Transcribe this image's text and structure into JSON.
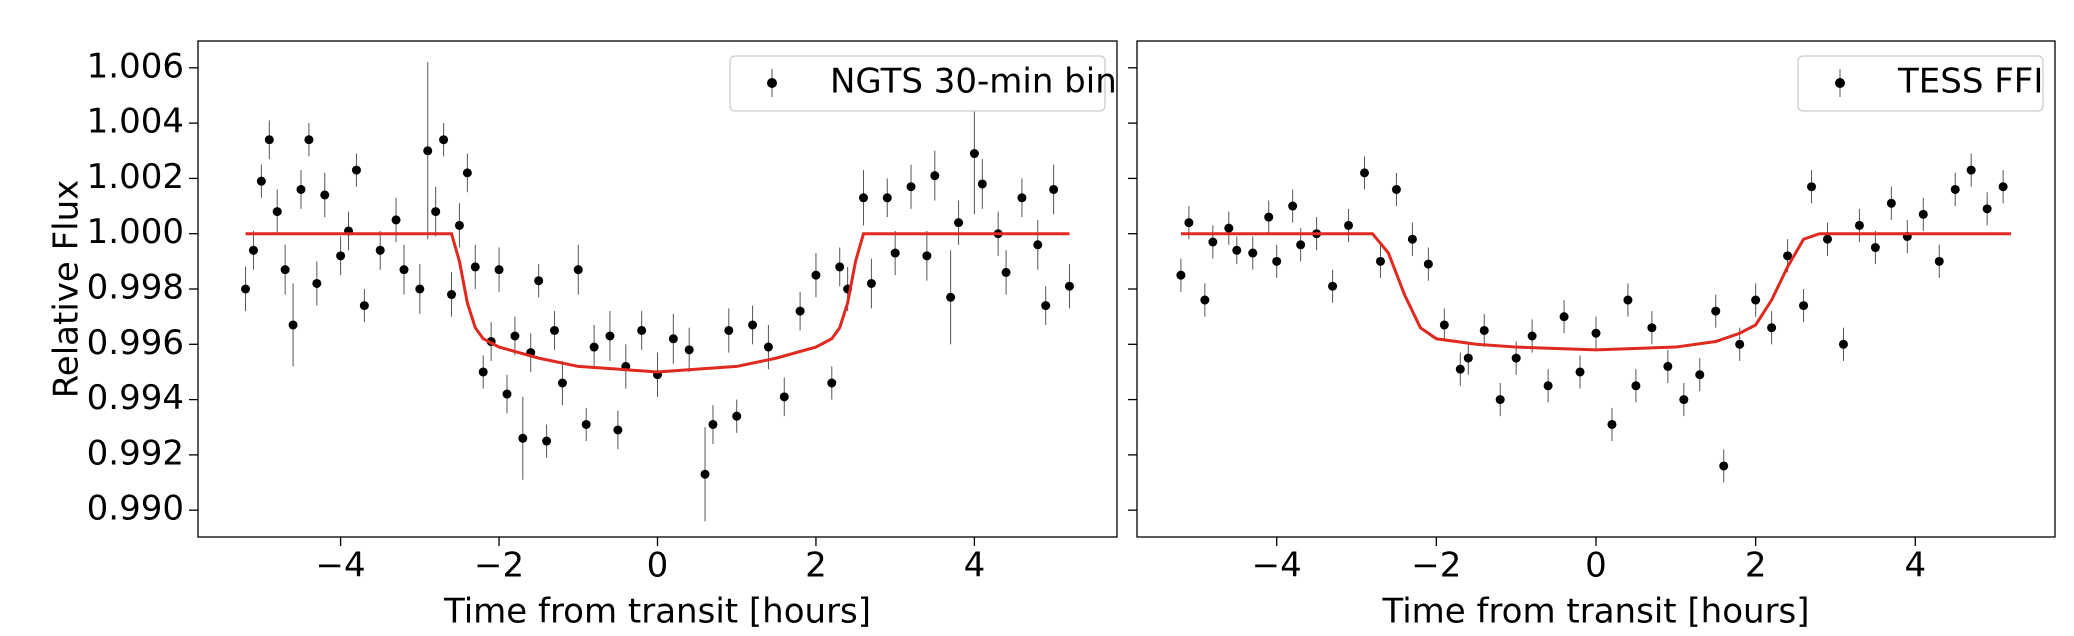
{
  "chart_data": [
    {
      "type": "scatter",
      "xlabel": "Time from transit [hours]",
      "ylabel": "Relative Flux",
      "xlim": [
        -5.8,
        5.8
      ],
      "ylim": [
        0.98903,
        1.00697
      ],
      "xticks": [
        {
          "value": -4,
          "label": "−4"
        },
        {
          "value": -2,
          "label": "−2"
        },
        0,
        2,
        4
      ],
      "yticks": [
        {
          "value": 0.99,
          "label": "0.990"
        },
        0.992,
        0.994,
        0.996,
        0.998,
        {
          "value": 1,
          "label": "1.000"
        },
        1.002,
        1.004,
        1.006
      ],
      "show_ytick_labels": true,
      "legend": "upper right",
      "series": [
        {
          "name": "NGTS 30-min bin",
          "type": "errorbar",
          "color": "#000000",
          "x": [
            -5.2,
            -5.1,
            -5.0,
            -4.9,
            -4.8,
            -4.7,
            -4.6,
            -4.5,
            -4.4,
            -4.3,
            -4.2,
            -4.0,
            -3.9,
            -3.8,
            -3.7,
            -3.5,
            -3.3,
            -3.2,
            -3.0,
            -2.9,
            -2.8,
            -2.7,
            -2.6,
            -2.5,
            -2.4,
            -2.3,
            -2.2,
            -2.1,
            -2.0,
            -1.9,
            -1.8,
            -1.7,
            -1.6,
            -1.5,
            -1.4,
            -1.3,
            -1.2,
            -1.0,
            -0.9,
            -0.8,
            -0.6,
            -0.5,
            -0.4,
            -0.2,
            0.0,
            0.2,
            0.4,
            0.6,
            0.7,
            0.9,
            1.0,
            1.2,
            1.4,
            1.6,
            1.8,
            2.0,
            2.2,
            2.3,
            2.4,
            2.6,
            2.7,
            2.9,
            3.0,
            3.2,
            3.4,
            3.5,
            3.7,
            3.8,
            4.0,
            4.1,
            4.3,
            4.4,
            4.6,
            4.8,
            4.9,
            5.0,
            5.2
          ],
          "values": [
            0.998,
            0.9994,
            1.0019,
            1.0034,
            1.0008,
            0.9987,
            0.9967,
            1.0016,
            1.0034,
            0.9982,
            1.0014,
            0.9992,
            1.0001,
            1.0023,
            0.9974,
            0.9994,
            1.0005,
            0.9987,
            0.998,
            1.003,
            1.0008,
            1.0034,
            0.9978,
            1.0003,
            1.0022,
            0.9988,
            0.995,
            0.9961,
            0.9987,
            0.9942,
            0.9963,
            0.9926,
            0.9957,
            0.9983,
            0.9925,
            0.9965,
            0.9946,
            0.9987,
            0.9931,
            0.9959,
            0.9963,
            0.9929,
            0.9952,
            0.9965,
            0.9949,
            0.9962,
            0.9958,
            0.9913,
            0.9931,
            0.9965,
            0.9934,
            0.9967,
            0.9959,
            0.9941,
            0.9972,
            0.9985,
            0.9946,
            0.9988,
            0.998,
            1.0013,
            0.9982,
            1.0013,
            0.9993,
            1.0017,
            0.9992,
            1.0021,
            0.9977,
            1.0004,
            1.0029,
            1.0018,
            1.0,
            0.9986,
            1.0013,
            0.9996,
            0.9974,
            1.0016,
            0.9981
          ],
          "errors": [
            0.0008,
            0.0007,
            0.0006,
            0.0007,
            0.0008,
            0.0009,
            0.0015,
            0.0007,
            0.0006,
            0.0008,
            0.0008,
            0.0007,
            0.0007,
            0.0006,
            0.0006,
            0.0007,
            0.0008,
            0.0009,
            0.0009,
            0.0032,
            0.0009,
            0.0006,
            0.0008,
            0.0008,
            0.0007,
            0.0008,
            0.0006,
            0.0007,
            0.0008,
            0.0007,
            0.0007,
            0.0015,
            0.0007,
            0.0006,
            0.0006,
            0.0007,
            0.0008,
            0.0009,
            0.0006,
            0.0008,
            0.0009,
            0.0007,
            0.0008,
            0.0007,
            0.0008,
            0.0009,
            0.0008,
            0.0017,
            0.0007,
            0.0008,
            0.0006,
            0.0007,
            0.0008,
            0.0007,
            0.0007,
            0.0008,
            0.0006,
            0.0007,
            0.0008,
            0.001,
            0.0009,
            0.0007,
            0.0008,
            0.0008,
            0.0009,
            0.0009,
            0.0017,
            0.0008,
            0.0022,
            0.0009,
            0.0008,
            0.0008,
            0.0007,
            0.0009,
            0.0007,
            0.0009,
            0.0008
          ]
        },
        {
          "type": "line",
          "color": "#e0291f",
          "x": [
            -5.2,
            -2.6,
            -2.5,
            -2.4,
            -2.3,
            -2.2,
            -2.0,
            -1.5,
            -1.0,
            -0.5,
            0,
            0.5,
            1.0,
            1.5,
            2.0,
            2.2,
            2.3,
            2.4,
            2.5,
            2.6,
            5.2
          ],
          "values": [
            1.0,
            1.0,
            0.999,
            0.9975,
            0.9966,
            0.9962,
            0.9959,
            0.9955,
            0.9952,
            0.9951,
            0.995,
            0.9951,
            0.9952,
            0.9955,
            0.9959,
            0.9962,
            0.9966,
            0.9975,
            0.999,
            1.0,
            1.0
          ]
        }
      ]
    },
    {
      "type": "scatter",
      "xlabel": "Time from transit [hours]",
      "xlim": [
        -5.75,
        5.75
      ],
      "ylim": [
        0.98903,
        1.00697
      ],
      "xticks": [
        {
          "value": -4,
          "label": "−4"
        },
        {
          "value": -2,
          "label": "−2"
        },
        0,
        2,
        4
      ],
      "yticks": [
        0.99,
        0.992,
        0.994,
        0.996,
        0.998,
        1,
        1.002,
        1.004,
        1.006
      ],
      "show_ytick_labels": false,
      "legend": "upper right",
      "series": [
        {
          "name": "TESS FFI",
          "type": "errorbar",
          "color": "#000000",
          "x": [
            -5.2,
            -5.1,
            -4.9,
            -4.8,
            -4.6,
            -4.5,
            -4.3,
            -4.1,
            -4.0,
            -3.8,
            -3.7,
            -3.5,
            -3.3,
            -3.1,
            -2.9,
            -2.7,
            -2.5,
            -2.3,
            -2.1,
            -1.9,
            -1.7,
            -1.6,
            -1.4,
            -1.2,
            -1.0,
            -0.8,
            -0.6,
            -0.4,
            -0.2,
            0.0,
            0.2,
            0.4,
            0.5,
            0.7,
            0.9,
            1.1,
            1.3,
            1.5,
            1.6,
            1.8,
            2.0,
            2.2,
            2.4,
            2.6,
            2.7,
            2.9,
            3.1,
            3.3,
            3.5,
            3.7,
            3.9,
            4.1,
            4.3,
            4.5,
            4.7,
            4.9,
            5.1
          ],
          "values": [
            0.9985,
            1.0004,
            0.9976,
            0.9997,
            1.0002,
            0.9994,
            0.9993,
            1.0006,
            0.999,
            1.001,
            0.9996,
            1.0,
            0.9981,
            1.0003,
            1.0022,
            0.999,
            1.0016,
            0.9998,
            0.9989,
            0.9967,
            0.9951,
            0.9955,
            0.9965,
            0.994,
            0.9955,
            0.9963,
            0.9945,
            0.997,
            0.995,
            0.9964,
            0.9931,
            0.9976,
            0.9945,
            0.9966,
            0.9952,
            0.994,
            0.9949,
            0.9972,
            0.9916,
            0.996,
            0.9976,
            0.9966,
            0.9992,
            0.9974,
            1.0017,
            0.9998,
            0.996,
            1.0003,
            0.9995,
            1.0011,
            0.9999,
            1.0007,
            0.999,
            1.0016,
            1.0023,
            1.0009,
            1.0017
          ],
          "errors": [
            0.0006,
            0.0006,
            0.0006,
            0.0006,
            0.0006,
            0.0005,
            0.0006,
            0.0006,
            0.0006,
            0.0006,
            0.0006,
            0.0006,
            0.0006,
            0.0006,
            0.0006,
            0.0006,
            0.0006,
            0.0006,
            0.0006,
            0.0006,
            0.0006,
            0.0006,
            0.0006,
            0.0006,
            0.0006,
            0.0006,
            0.0006,
            0.0006,
            0.0006,
            0.0006,
            0.0006,
            0.0006,
            0.0006,
            0.0006,
            0.0006,
            0.0006,
            0.0006,
            0.0006,
            0.0006,
            0.0006,
            0.0006,
            0.0006,
            0.0006,
            0.0006,
            0.0006,
            0.0006,
            0.0006,
            0.0006,
            0.0006,
            0.0006,
            0.0006,
            0.0006,
            0.0006,
            0.0006,
            0.0006,
            0.0006,
            0.0006
          ]
        },
        {
          "type": "line",
          "color": "#e0291f",
          "x": [
            -5.2,
            -2.8,
            -2.6,
            -2.4,
            -2.2,
            -2.0,
            -1.5,
            -1.0,
            0,
            1.0,
            1.5,
            1.8,
            2.0,
            2.2,
            2.4,
            2.6,
            2.8,
            5.2
          ],
          "values": [
            1.0,
            1.0,
            0.9993,
            0.9978,
            0.9966,
            0.9962,
            0.996,
            0.9959,
            0.9958,
            0.9959,
            0.9961,
            0.9964,
            0.9967,
            0.9976,
            0.9988,
            0.9998,
            1.0,
            1.0
          ]
        }
      ]
    }
  ]
}
